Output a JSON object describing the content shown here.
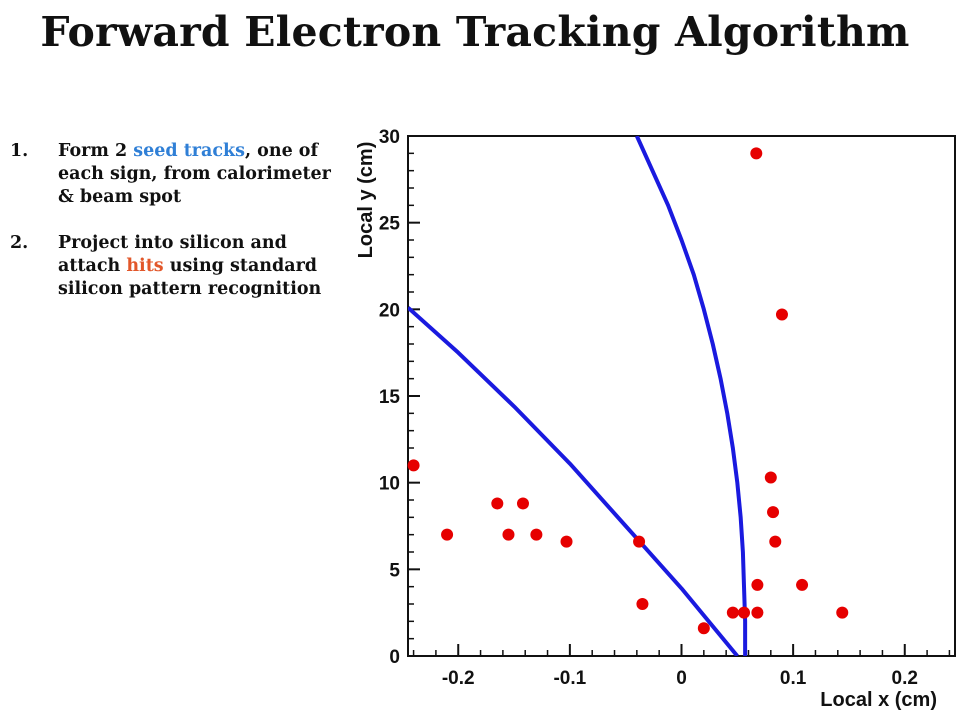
{
  "title": "Forward Electron Tracking Algorithm",
  "bullets": [
    {
      "number": "1.",
      "segments": [
        {
          "text": "Form 2 ",
          "color": ""
        },
        {
          "text": "seed tracks",
          "color": "#2f7fd6"
        },
        {
          "text": ", one of each sign, from calorimeter & beam spot",
          "color": ""
        }
      ]
    },
    {
      "number": "2.",
      "segments": [
        {
          "text": "Project into silicon and attach ",
          "color": ""
        },
        {
          "text": "hits",
          "color": "#e2572a"
        },
        {
          "text": " using standard silicon pattern recognition",
          "color": ""
        }
      ]
    }
  ],
  "chart_data": {
    "type": "scatter",
    "xlabel": "Local x (cm)",
    "ylabel": "Local y (cm)",
    "xlim": [
      -0.245,
      0.245
    ],
    "ylim": [
      0,
      30
    ],
    "xticks": [
      -0.2,
      -0.1,
      0,
      0.1,
      0.2
    ],
    "xtick_labels": [
      "-0.2",
      "-0.1",
      "0",
      "0.1",
      "0.2"
    ],
    "yticks": [
      0,
      5,
      10,
      15,
      20,
      25,
      30
    ],
    "ytick_labels": [
      "0",
      "5",
      "10",
      "15",
      "20",
      "25",
      "30"
    ],
    "grid": false,
    "point_color": "#e60000",
    "line_color": "#1a1adf",
    "points": [
      {
        "x": -0.24,
        "y": 11.0
      },
      {
        "x": -0.21,
        "y": 7.0
      },
      {
        "x": -0.165,
        "y": 8.8
      },
      {
        "x": -0.155,
        "y": 7.0
      },
      {
        "x": -0.142,
        "y": 8.8
      },
      {
        "x": -0.13,
        "y": 7.0
      },
      {
        "x": -0.103,
        "y": 6.6
      },
      {
        "x": -0.038,
        "y": 6.6
      },
      {
        "x": -0.035,
        "y": 3.0
      },
      {
        "x": 0.02,
        "y": 1.6
      },
      {
        "x": 0.046,
        "y": 2.5
      },
      {
        "x": 0.056,
        "y": 2.5
      },
      {
        "x": 0.068,
        "y": 2.5
      },
      {
        "x": 0.068,
        "y": 4.1
      },
      {
        "x": 0.067,
        "y": 29.0
      },
      {
        "x": 0.08,
        "y": 10.3
      },
      {
        "x": 0.082,
        "y": 8.3
      },
      {
        "x": 0.084,
        "y": 6.6
      },
      {
        "x": 0.09,
        "y": 19.7
      },
      {
        "x": 0.108,
        "y": 4.1
      },
      {
        "x": 0.144,
        "y": 2.5
      }
    ],
    "tracks": [
      {
        "points": [
          [
            -0.245,
            20.1
          ],
          [
            -0.2,
            17.5
          ],
          [
            -0.15,
            14.4
          ],
          [
            -0.1,
            11.1
          ],
          [
            -0.05,
            7.5
          ],
          [
            0.0,
            3.9
          ],
          [
            0.05,
            0.0
          ]
        ]
      },
      {
        "points": [
          [
            0.057,
            0.0
          ],
          [
            0.057,
            2.0
          ],
          [
            0.056,
            4.0
          ],
          [
            0.055,
            6.0
          ],
          [
            0.053,
            8.0
          ],
          [
            0.05,
            10.0
          ],
          [
            0.046,
            12.0
          ],
          [
            0.041,
            14.0
          ],
          [
            0.035,
            16.0
          ],
          [
            0.028,
            18.0
          ],
          [
            0.02,
            20.0
          ],
          [
            0.011,
            22.0
          ],
          [
            0.0,
            24.0
          ],
          [
            -0.012,
            26.0
          ],
          [
            -0.026,
            28.0
          ],
          [
            -0.04,
            30.0
          ]
        ]
      }
    ]
  }
}
